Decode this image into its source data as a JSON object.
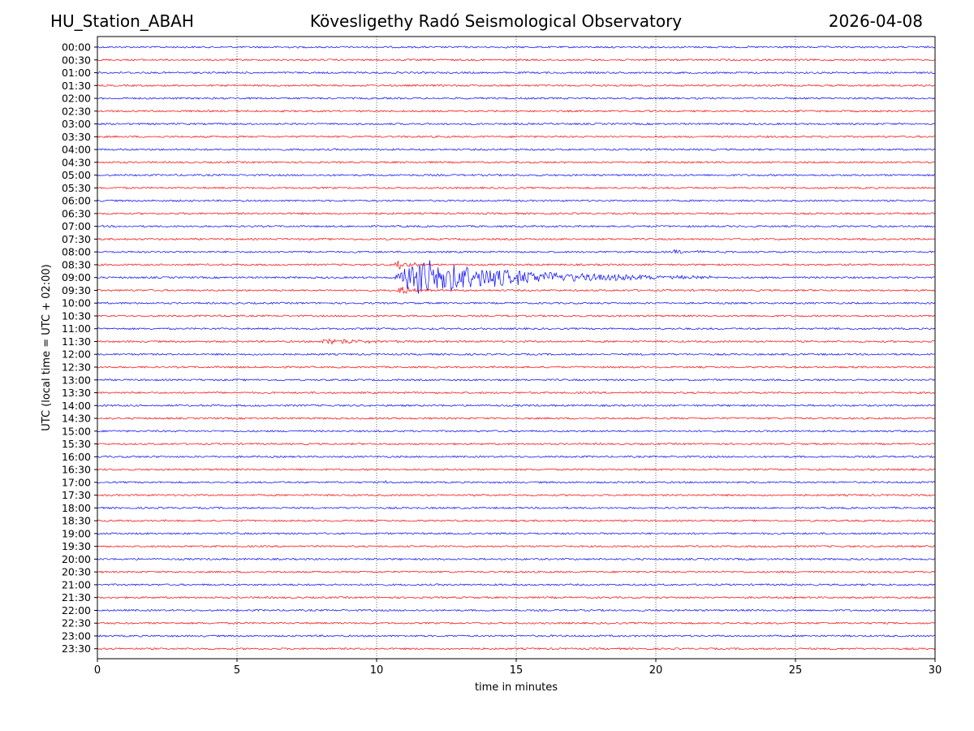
{
  "header": {
    "station": "HU_Station_ABAH",
    "title": "Kövesligethy Radó Seismological Observatory",
    "date": "2026-04-08"
  },
  "chart_data": {
    "type": "line",
    "title": "Kövesligethy Radó Seismological Observatory",
    "xlabel": "time in minutes",
    "ylabel": "UTC (local time = UTC + 02:00)",
    "xlim": [
      0,
      30
    ],
    "xticks": [
      0,
      5,
      10,
      15,
      20,
      25,
      30
    ],
    "grid": "vertical dotted at x ticks",
    "trace_colors": [
      "#0000ff",
      "#ff0000"
    ],
    "rows": [
      "00:00",
      "00:30",
      "01:00",
      "01:30",
      "02:00",
      "02:30",
      "03:00",
      "03:30",
      "04:00",
      "04:30",
      "05:00",
      "05:30",
      "06:00",
      "06:30",
      "07:00",
      "07:30",
      "08:00",
      "08:30",
      "09:00",
      "09:30",
      "10:00",
      "10:30",
      "11:00",
      "11:30",
      "12:00",
      "12:30",
      "13:00",
      "13:30",
      "14:00",
      "14:30",
      "15:00",
      "15:30",
      "16:00",
      "16:30",
      "17:00",
      "17:30",
      "18:00",
      "18:30",
      "19:00",
      "19:30",
      "20:00",
      "20:30",
      "21:00",
      "21:30",
      "22:00",
      "22:30",
      "23:00",
      "23:30"
    ],
    "events": [
      {
        "row": "02:00",
        "start_min": 29.1,
        "end_min": 30.0,
        "amplitude": 1.5
      },
      {
        "row": "08:00",
        "start_min": 20.5,
        "end_min": 22.8,
        "amplitude": 3.0
      },
      {
        "row": "08:30",
        "start_min": 10.6,
        "end_min": 12.2,
        "amplitude": 8.0
      },
      {
        "row": "09:00",
        "start_min": 10.6,
        "end_min": 22.0,
        "amplitude": 30.0
      },
      {
        "row": "09:30",
        "start_min": 10.7,
        "end_min": 12.2,
        "amplitude": 8.0
      },
      {
        "row": "11:30",
        "start_min": 7.9,
        "end_min": 12.5,
        "amplitude": 5.0
      },
      {
        "row": "17:00",
        "start_min": 10.3,
        "end_min": 10.5,
        "amplitude": 2.5
      }
    ]
  }
}
